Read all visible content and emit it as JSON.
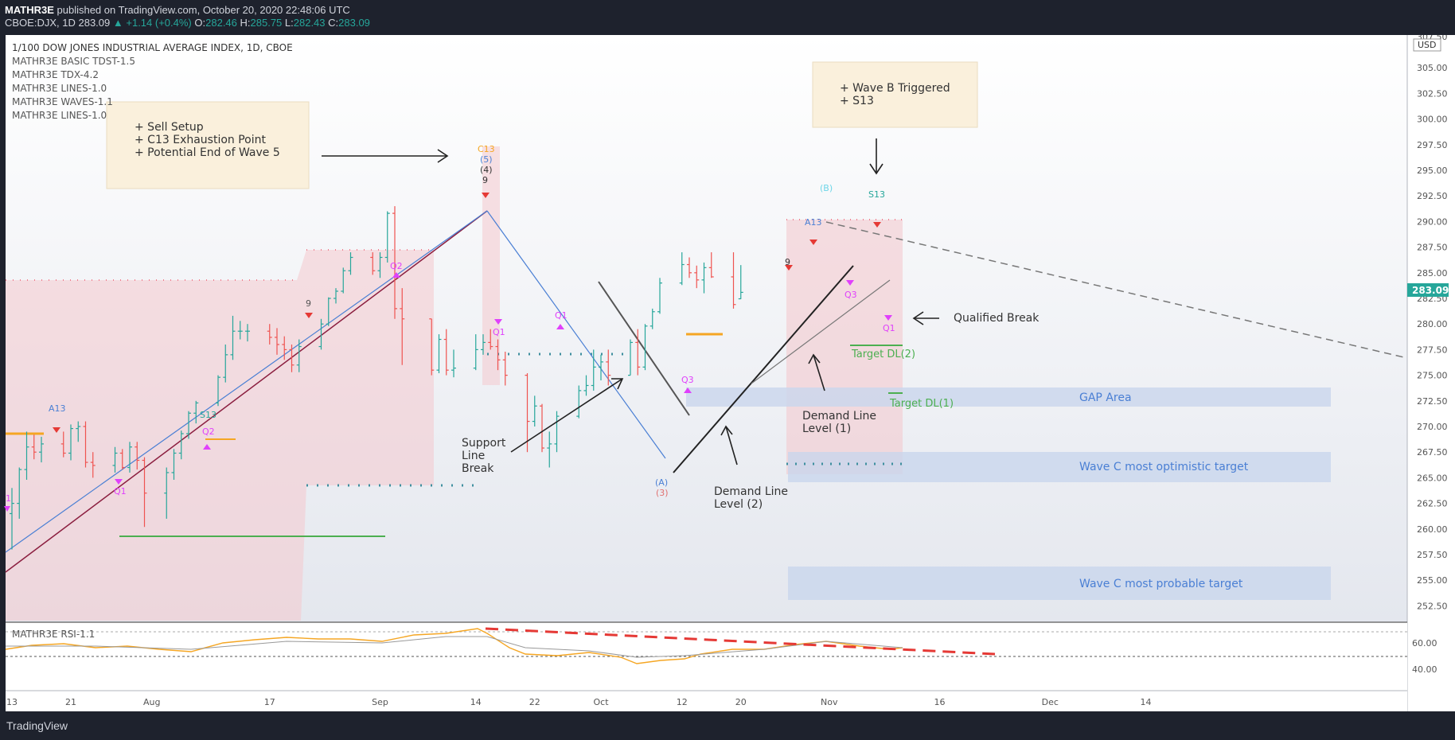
{
  "header": {
    "publisher": "MATHR3E",
    "published_text": "published on TradingView.com, October 20, 2020 22:48:06 UTC",
    "symbol": "CBOE:DJX, 1D",
    "last": "283.09",
    "change_arrow": "▲",
    "change": "+1.14 (+0.4%)",
    "o_label": "O:",
    "o": "282.46",
    "h_label": "H:",
    "h": "285.75",
    "l_label": "L:",
    "l": "282.43",
    "c_label": "C:",
    "c": "283.09"
  },
  "legend": [
    "1/100 DOW JONES INDUSTRIAL AVERAGE INDEX, 1D, CBOE",
    "MATHR3E BASIC TDST-1.5",
    "MATHR3E TDX-4.2",
    "MATHR3E LINES-1.0",
    "MATHR3E WAVES-1.1",
    "MATHR3E LINES-1.0"
  ],
  "rsi_label": "MATHR3E RSI-1.1",
  "annotations": {
    "sell_setup": [
      "+ Sell Setup",
      "+ C13 Exhaustion Point",
      "+ Potential End of Wave 5"
    ],
    "wave_b": [
      "+ Wave B Triggered",
      "+ S13"
    ],
    "qualified_break": "Qualified Break",
    "support_break": [
      "Support",
      "Line",
      "Break"
    ],
    "demand_line_2": [
      "Demand Line",
      "Level (2)"
    ],
    "demand_line_1": [
      "Demand Line",
      "Level (1)"
    ],
    "target_dl2": "Target DL(2)",
    "target_dl1": "Target DL(1)",
    "gap_area": "GAP Area",
    "wave_c_optimistic": "Wave C most optimistic target",
    "wave_c_probable": "Wave C most probable target"
  },
  "markers": {
    "c13": "C13",
    "w5": "(5)",
    "w4": "(4)",
    "nine": "9",
    "a13_left": "A13",
    "s13_left": "S13",
    "q2": "Q2",
    "q1": "Q1",
    "q3": "Q3",
    "wave_a": "(A)",
    "wave_3": "(3)",
    "wave_b": "(B)",
    "a13_right": "A13",
    "s13_right": "S13",
    "one": "1"
  },
  "chart_data": {
    "type": "candlestick",
    "symbol": "CBOE:DJX",
    "ylim": [
      250.9,
      308.2
    ],
    "y_ticks": [
      252.5,
      255.0,
      257.5,
      260.0,
      262.5,
      265.0,
      267.5,
      270.0,
      272.5,
      275.0,
      277.5,
      280.0,
      282.5,
      285.0,
      287.5,
      290.0,
      292.5,
      295.0,
      297.5,
      300.0,
      302.5,
      305.0
    ],
    "top_tick_label": "307.50",
    "currency": "USD",
    "last_price": "283.09",
    "x_labels": [
      "13",
      "21",
      "Aug",
      "17",
      "Sep",
      "14",
      "22",
      "Oct",
      "12",
      "20",
      "Nov",
      "16",
      "Dec",
      "14"
    ],
    "rsi": {
      "ticks": [
        "60.00",
        "40.00"
      ]
    },
    "candles": [
      {
        "date": "2020-07-13",
        "o": 261.5,
        "h": 264.0,
        "l": 258.0,
        "c": 262.5
      },
      {
        "date": "2020-07-14",
        "o": 262.5,
        "h": 266.0,
        "l": 261.0,
        "c": 265.8
      },
      {
        "date": "2020-07-15",
        "o": 265.8,
        "h": 269.5,
        "l": 264.8,
        "c": 268.0
      },
      {
        "date": "2020-07-16",
        "o": 268.0,
        "h": 269.2,
        "l": 266.8,
        "c": 267.5
      },
      {
        "date": "2020-07-17",
        "o": 267.5,
        "h": 269.0,
        "l": 266.5,
        "c": 268.3
      },
      {
        "date": "2020-07-20",
        "o": 268.3,
        "h": 269.5,
        "l": 267.0,
        "c": 267.4
      },
      {
        "date": "2020-07-21",
        "o": 267.4,
        "h": 270.2,
        "l": 266.7,
        "c": 269.8
      },
      {
        "date": "2020-07-22",
        "o": 269.8,
        "h": 270.5,
        "l": 268.5,
        "c": 270.0
      },
      {
        "date": "2020-07-23",
        "o": 270.0,
        "h": 270.5,
        "l": 266.0,
        "c": 266.5
      },
      {
        "date": "2020-07-24",
        "o": 266.5,
        "h": 267.5,
        "l": 265.0,
        "c": 266.2
      },
      {
        "date": "2020-07-27",
        "o": 266.2,
        "h": 268.0,
        "l": 265.5,
        "c": 267.4
      },
      {
        "date": "2020-07-28",
        "o": 267.4,
        "h": 267.8,
        "l": 265.8,
        "c": 266.0
      },
      {
        "date": "2020-07-29",
        "o": 266.0,
        "h": 268.5,
        "l": 265.5,
        "c": 268.0
      },
      {
        "date": "2020-07-30",
        "o": 268.0,
        "h": 268.5,
        "l": 265.8,
        "c": 266.7
      },
      {
        "date": "2020-07-31",
        "o": 266.7,
        "h": 267.0,
        "l": 260.2,
        "c": 263.5
      },
      {
        "date": "2020-08-03",
        "o": 263.5,
        "h": 266.0,
        "l": 261.0,
        "c": 265.5
      },
      {
        "date": "2020-08-04",
        "o": 265.5,
        "h": 267.8,
        "l": 264.8,
        "c": 267.4
      },
      {
        "date": "2020-08-05",
        "o": 267.4,
        "h": 269.6,
        "l": 266.8,
        "c": 269.3
      },
      {
        "date": "2020-08-06",
        "o": 269.3,
        "h": 271.5,
        "l": 268.8,
        "c": 271.3
      },
      {
        "date": "2020-08-07",
        "o": 271.3,
        "h": 272.5,
        "l": 270.3,
        "c": 272.3
      },
      {
        "date": "2020-08-10",
        "o": 272.3,
        "h": 275.0,
        "l": 272.0,
        "c": 274.8
      },
      {
        "date": "2020-08-11",
        "o": 274.8,
        "h": 278.0,
        "l": 274.3,
        "c": 277.0
      },
      {
        "date": "2020-08-12",
        "o": 277.0,
        "h": 280.8,
        "l": 276.5,
        "c": 279.3
      },
      {
        "date": "2020-08-13",
        "o": 279.3,
        "h": 280.3,
        "l": 278.5,
        "c": 279.3
      },
      {
        "date": "2020-08-14",
        "o": 279.3,
        "h": 280.0,
        "l": 278.3,
        "c": 279.3
      },
      {
        "date": "2020-08-17",
        "o": 279.3,
        "h": 280.0,
        "l": 278.0,
        "c": 278.7
      },
      {
        "date": "2020-08-18",
        "o": 278.7,
        "h": 279.6,
        "l": 277.0,
        "c": 278.0
      },
      {
        "date": "2020-08-19",
        "o": 278.0,
        "h": 278.8,
        "l": 276.5,
        "c": 277.5
      },
      {
        "date": "2020-08-20",
        "o": 277.5,
        "h": 278.0,
        "l": 275.3,
        "c": 276.0
      },
      {
        "date": "2020-08-21",
        "o": 276.0,
        "h": 278.5,
        "l": 275.3,
        "c": 277.8
      },
      {
        "date": "2020-08-24",
        "o": 277.8,
        "h": 280.5,
        "l": 277.5,
        "c": 280.0
      },
      {
        "date": "2020-08-25",
        "o": 280.0,
        "h": 282.6,
        "l": 279.8,
        "c": 282.5
      },
      {
        "date": "2020-08-26",
        "o": 282.5,
        "h": 283.5,
        "l": 282.0,
        "c": 283.2
      },
      {
        "date": "2020-08-27",
        "o": 283.2,
        "h": 285.5,
        "l": 283.0,
        "c": 285.2
      },
      {
        "date": "2020-08-28",
        "o": 285.2,
        "h": 287.0,
        "l": 284.8,
        "c": 286.5
      },
      {
        "date": "2020-08-31",
        "o": 286.5,
        "h": 287.0,
        "l": 284.8,
        "c": 285.2
      },
      {
        "date": "2020-09-01",
        "o": 285.2,
        "h": 287.0,
        "l": 284.5,
        "c": 286.5
      },
      {
        "date": "2020-09-02",
        "o": 286.5,
        "h": 291.0,
        "l": 286.0,
        "c": 290.8
      },
      {
        "date": "2020-09-03",
        "o": 290.8,
        "h": 291.5,
        "l": 280.5,
        "c": 281.5
      },
      {
        "date": "2020-09-04",
        "o": 281.5,
        "h": 283.5,
        "l": 276.0,
        "c": 280.5
      },
      {
        "date": "2020-09-08",
        "o": 280.5,
        "h": 280.5,
        "l": 275.0,
        "c": 275.5
      },
      {
        "date": "2020-09-09",
        "o": 275.5,
        "h": 279.0,
        "l": 275.2,
        "c": 278.5
      },
      {
        "date": "2020-09-10",
        "o": 278.5,
        "h": 279.5,
        "l": 275.0,
        "c": 275.5
      },
      {
        "date": "2020-09-11",
        "o": 275.5,
        "h": 277.5,
        "l": 274.8,
        "c": 275.7
      },
      {
        "date": "2020-09-14",
        "o": 275.7,
        "h": 279.0,
        "l": 275.5,
        "c": 277.5
      },
      {
        "date": "2020-09-15",
        "o": 277.5,
        "h": 279.0,
        "l": 277.0,
        "c": 278.2
      },
      {
        "date": "2020-09-16",
        "o": 278.2,
        "h": 279.5,
        "l": 277.5,
        "c": 277.8
      },
      {
        "date": "2020-09-17",
        "o": 277.8,
        "h": 278.5,
        "l": 275.5,
        "c": 276.5
      },
      {
        "date": "2020-09-18",
        "o": 276.5,
        "h": 277.3,
        "l": 274.0,
        "c": 275.0
      },
      {
        "date": "2020-09-21",
        "o": 275.0,
        "h": 275.2,
        "l": 267.5,
        "c": 270.5
      },
      {
        "date": "2020-09-22",
        "o": 270.5,
        "h": 273.0,
        "l": 270.0,
        "c": 272.0
      },
      {
        "date": "2020-09-23",
        "o": 272.0,
        "h": 272.2,
        "l": 267.5,
        "c": 267.9
      },
      {
        "date": "2020-09-24",
        "o": 267.9,
        "h": 269.5,
        "l": 266.0,
        "c": 268.3
      },
      {
        "date": "2020-09-25",
        "o": 268.3,
        "h": 271.5,
        "l": 267.5,
        "c": 271.0
      },
      {
        "date": "2020-09-28",
        "o": 271.0,
        "h": 274.0,
        "l": 270.8,
        "c": 273.5
      },
      {
        "date": "2020-09-29",
        "o": 273.5,
        "h": 275.0,
        "l": 273.0,
        "c": 274.0
      },
      {
        "date": "2020-09-30",
        "o": 274.0,
        "h": 277.5,
        "l": 273.5,
        "c": 275.8
      },
      {
        "date": "2020-10-01",
        "o": 275.8,
        "h": 277.0,
        "l": 274.5,
        "c": 276.3
      },
      {
        "date": "2020-10-02",
        "o": 276.3,
        "h": 277.5,
        "l": 274.0,
        "c": 275.0
      },
      {
        "date": "2020-10-05",
        "o": 275.0,
        "h": 278.5,
        "l": 275.0,
        "c": 278.2
      },
      {
        "date": "2020-10-06",
        "o": 278.2,
        "h": 279.5,
        "l": 275.0,
        "c": 275.8
      },
      {
        "date": "2020-10-07",
        "o": 275.8,
        "h": 280.0,
        "l": 275.5,
        "c": 279.8
      },
      {
        "date": "2020-10-08",
        "o": 279.8,
        "h": 281.5,
        "l": 279.5,
        "c": 281.2
      },
      {
        "date": "2020-10-09",
        "o": 281.2,
        "h": 284.5,
        "l": 281.0,
        "c": 284.0
      },
      {
        "date": "2020-10-12",
        "o": 284.0,
        "h": 287.0,
        "l": 283.8,
        "c": 285.8
      },
      {
        "date": "2020-10-13",
        "o": 285.8,
        "h": 286.5,
        "l": 284.5,
        "c": 285.0
      },
      {
        "date": "2020-10-14",
        "o": 285.0,
        "h": 285.7,
        "l": 283.5,
        "c": 284.3
      },
      {
        "date": "2020-10-15",
        "o": 284.3,
        "h": 286.0,
        "l": 283.0,
        "c": 285.5
      },
      {
        "date": "2020-10-16",
        "o": 285.5,
        "h": 287.0,
        "l": 284.5,
        "c": 284.6
      },
      {
        "date": "2020-10-19",
        "o": 284.6,
        "h": 287.0,
        "l": 281.5,
        "c": 281.9
      },
      {
        "date": "2020-10-20",
        "o": 282.46,
        "h": 285.75,
        "l": 282.43,
        "c": 283.09
      }
    ]
  }
}
